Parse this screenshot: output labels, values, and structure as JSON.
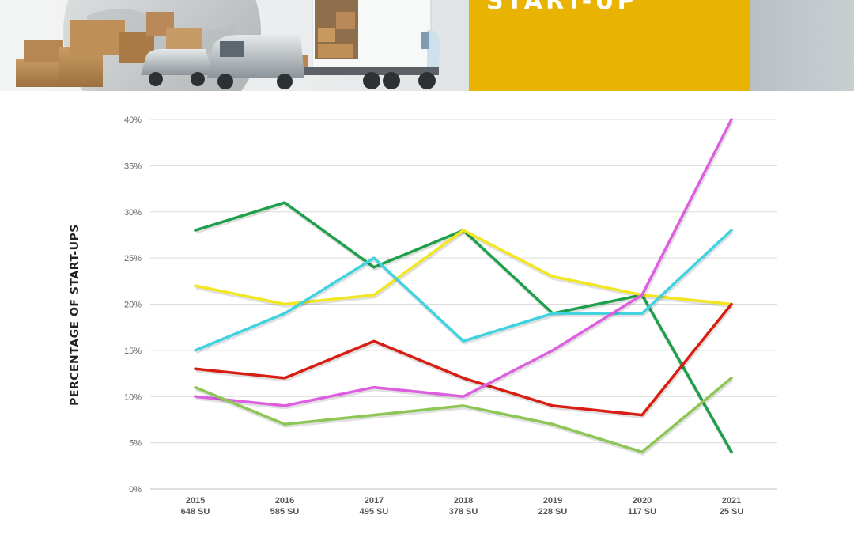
{
  "header": {
    "title": "START-UP",
    "colors": {
      "accent": "#e9b302",
      "title_text": "#ffffff"
    }
  },
  "chart_data": {
    "type": "line",
    "title": "",
    "xlabel": "",
    "ylabel": "PERCENTAGE OF START-UPS",
    "categories": [
      "2015",
      "2016",
      "2017",
      "2018",
      "2019",
      "2020",
      "2021"
    ],
    "category_sublabels": [
      "648 SU",
      "585 SU",
      "495 SU",
      "378 SU",
      "228 SU",
      "117 SU",
      "25 SU"
    ],
    "ylim": [
      0,
      40
    ],
    "yticks": [
      "0%",
      "5%",
      "10%",
      "15%",
      "20%",
      "25%",
      "30%",
      "35%",
      "40%"
    ],
    "grid": true,
    "series": [
      {
        "color": "#1ea04b",
        "values": [
          28,
          31,
          24,
          28,
          19,
          21,
          4
        ]
      },
      {
        "color": "#f1e61f",
        "values": [
          22,
          20,
          21,
          28,
          23,
          21,
          20
        ]
      },
      {
        "color": "#3fd3e0",
        "values": [
          15,
          19,
          25,
          16,
          19,
          19,
          28
        ]
      },
      {
        "color": "#d81e12",
        "values": [
          13,
          12,
          16,
          12,
          9,
          8,
          20
        ]
      },
      {
        "color": "#dd5fe0",
        "values": [
          10,
          9,
          11,
          10,
          15,
          21,
          40
        ]
      },
      {
        "color": "#8cc655",
        "values": [
          11,
          7,
          8,
          9,
          7,
          4,
          12
        ]
      }
    ]
  }
}
